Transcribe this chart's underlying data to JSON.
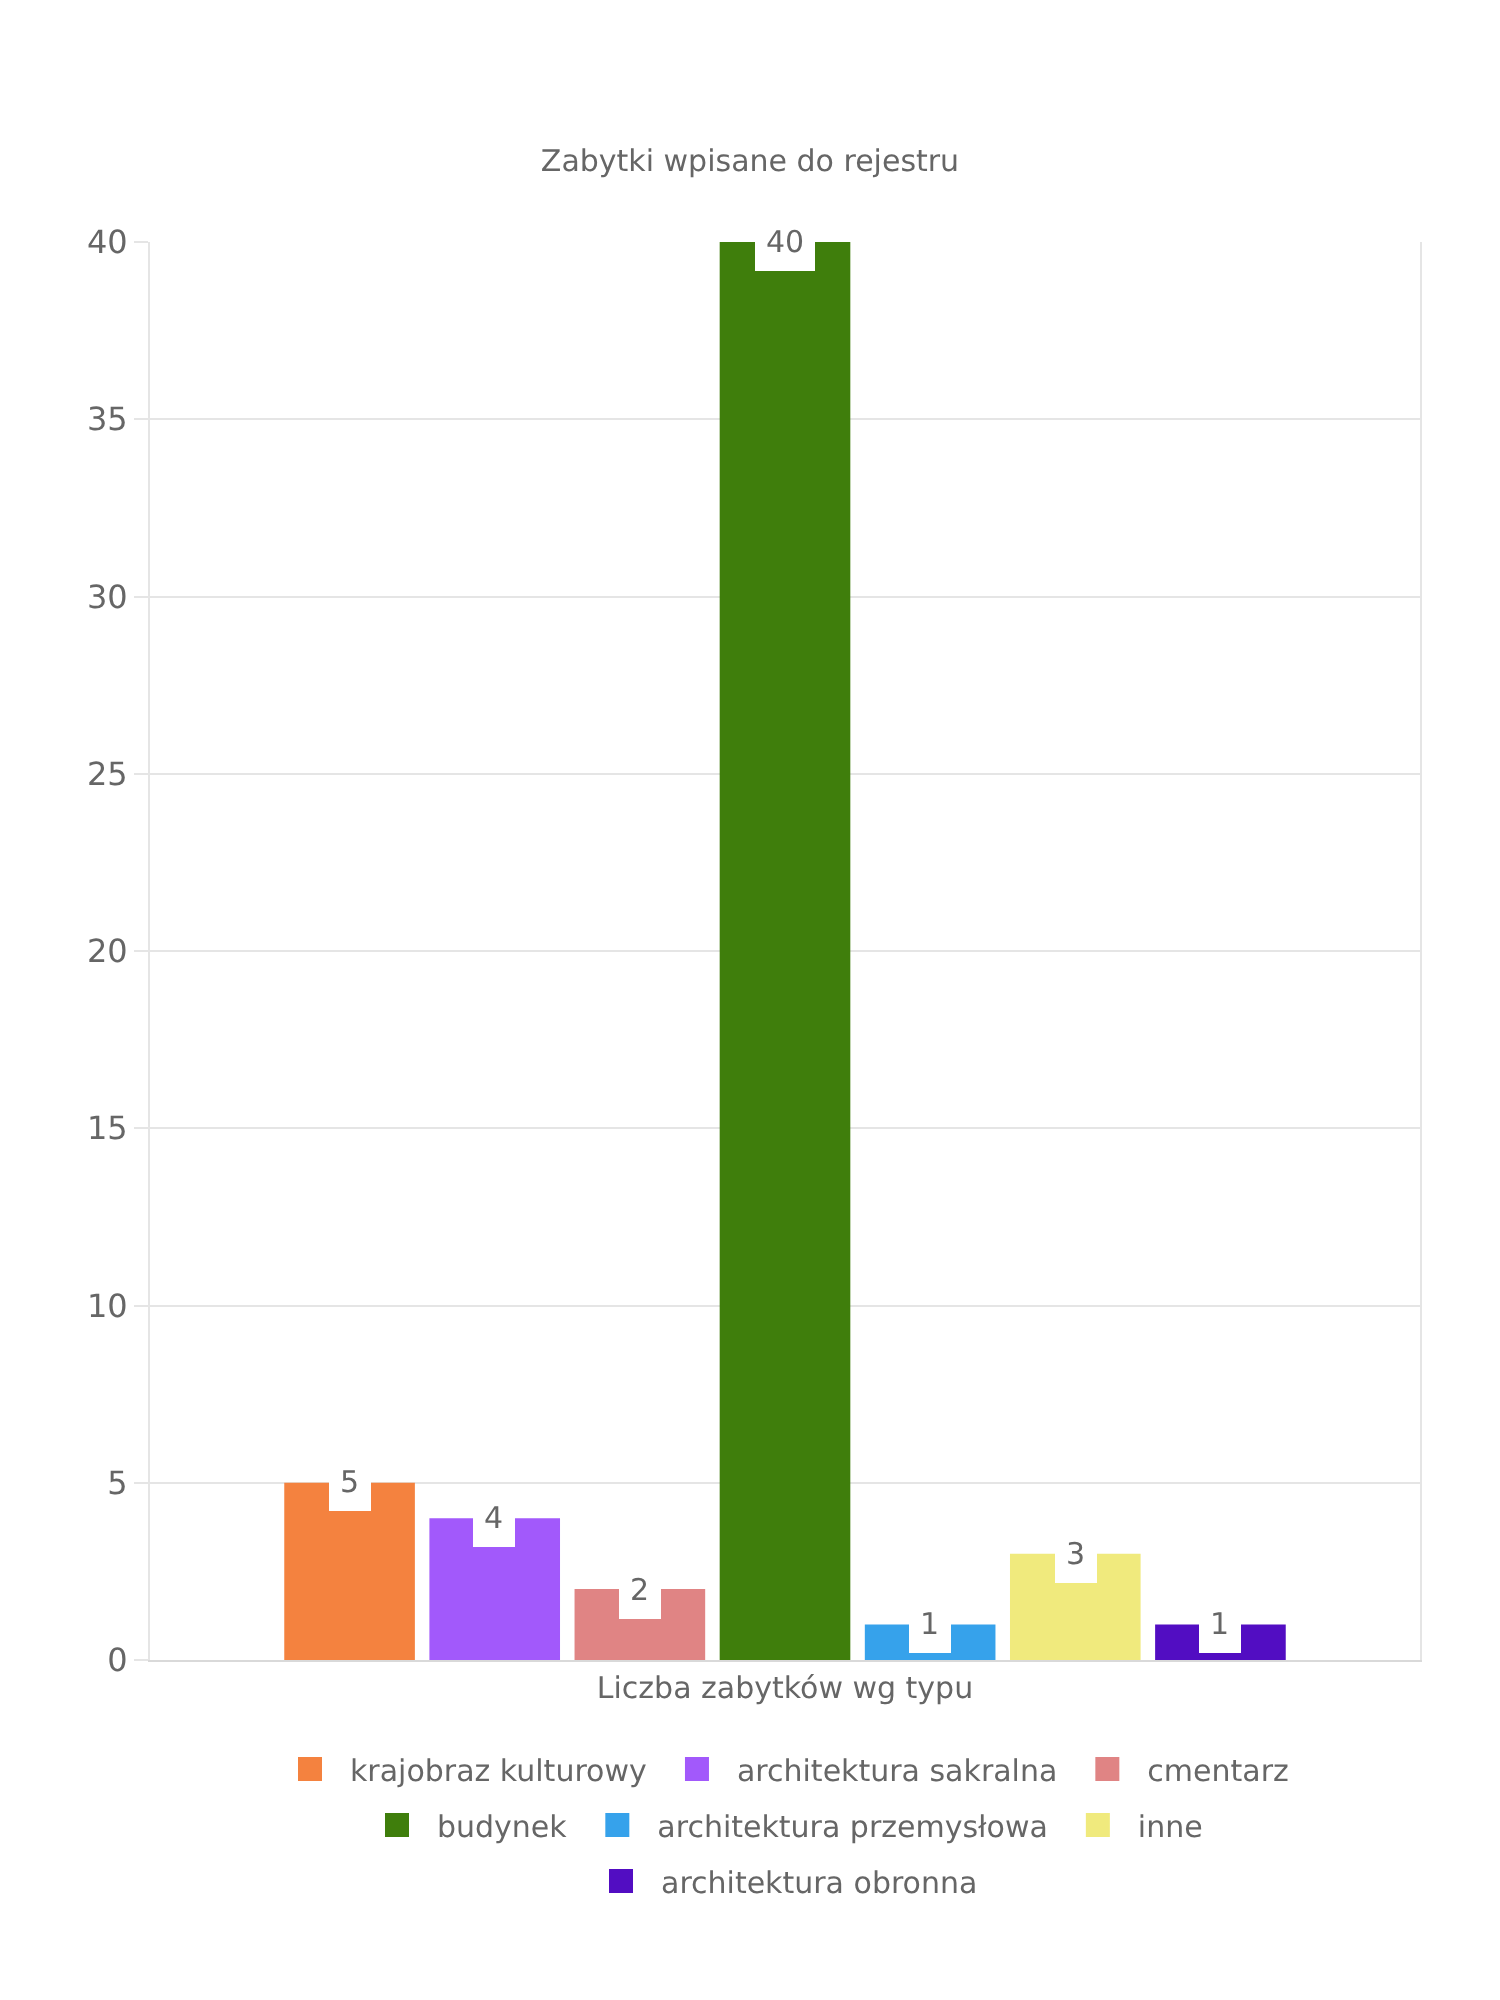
{
  "chart_data": {
    "type": "bar",
    "title": "Zabytki wpisane do rejestru",
    "categories": [
      "Liczba zabytków wg typu"
    ],
    "series": [
      {
        "name": "krajobraz kulturowy",
        "color": "#f4823f",
        "values": [
          5
        ]
      },
      {
        "name": "architektura sakralna",
        "color": "#a259fb",
        "values": [
          4
        ]
      },
      {
        "name": "cmentarz",
        "color": "#e08484",
        "values": [
          2
        ]
      },
      {
        "name": "budynek",
        "color": "#3f7e0c",
        "values": [
          40
        ]
      },
      {
        "name": "architektura przemysłowa",
        "color": "#36a2eb",
        "values": [
          1
        ]
      },
      {
        "name": "inne",
        "color": "#f0ea7d",
        "values": [
          3
        ]
      },
      {
        "name": "architektura obronna",
        "color": "#520dc2",
        "values": [
          1
        ]
      }
    ],
    "ylim": [
      0,
      40
    ],
    "yticks": [
      0,
      5,
      10,
      15,
      20,
      25,
      30,
      35,
      40
    ],
    "grid": "y",
    "legend": "bottom",
    "data_labels": true
  }
}
